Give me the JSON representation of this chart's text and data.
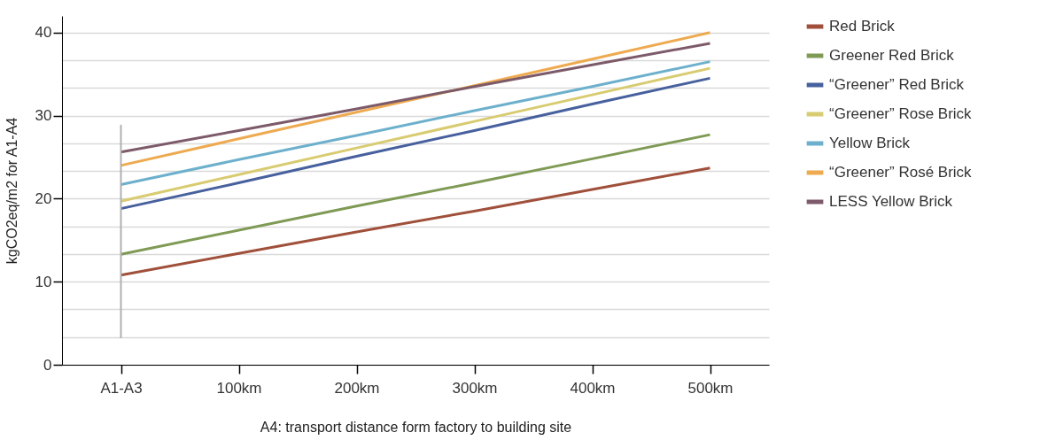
{
  "chart_data": {
    "type": "line",
    "xlabel": "A4: transport distance form factory to building site",
    "ylabel": "kgCO2eq/m2 for A1-A4",
    "categories": [
      "A1-A3",
      "100km",
      "200km",
      "300km",
      "400km",
      "500km"
    ],
    "ylim": [
      0,
      42
    ],
    "yticks": [
      0,
      {
        "value": 3.333,
        "label": null
      },
      {
        "value": 6.667,
        "label": null
      },
      10,
      {
        "value": 13.333,
        "label": null
      },
      {
        "value": 16.667,
        "label": null
      },
      20,
      {
        "value": 23.333,
        "label": null
      },
      {
        "value": 26.667,
        "label": null
      },
      30,
      {
        "value": 33.333,
        "label": null
      },
      {
        "value": 36.667,
        "label": null
      },
      40
    ],
    "grid": "y",
    "legend": "top right",
    "series": [
      {
        "name": "Red Brick",
        "color": "#a0503a",
        "values": [
          10.8,
          13.4,
          16.0,
          18.5,
          21.1,
          23.7
        ]
      },
      {
        "name": "Greener Red Brick",
        "color": "#7f9a55",
        "values": [
          13.3,
          16.2,
          19.1,
          21.9,
          24.8,
          27.7
        ]
      },
      {
        "name": "“Greener” Red Brick",
        "color": "#47609e",
        "values": [
          18.8,
          21.9,
          25.1,
          28.2,
          31.4,
          34.5
        ]
      },
      {
        "name": "“Greener” Rose Brick",
        "color": "#d8cb70",
        "values": [
          19.7,
          22.9,
          26.1,
          29.3,
          32.5,
          35.7
        ]
      },
      {
        "name": "Yellow Brick",
        "color": "#6db0cc",
        "values": [
          21.7,
          24.7,
          27.6,
          30.6,
          33.5,
          36.5
        ]
      },
      {
        "name": "“Greener” Rosé Brick",
        "color": "#eeaa50",
        "values": [
          24.0,
          27.2,
          30.4,
          33.6,
          36.8,
          40.0
        ]
      },
      {
        "name": "LESS Yellow Brick",
        "color": "#7d5a6a",
        "values": [
          25.6,
          28.2,
          30.8,
          33.5,
          36.1,
          38.7
        ]
      },
      {
        "type": "line",
        "color": "#b0b0b0",
        "x": [
          "A1-A3",
          "A1-A3"
        ],
        "values": [
          3.2,
          28.9
        ]
      }
    ]
  }
}
